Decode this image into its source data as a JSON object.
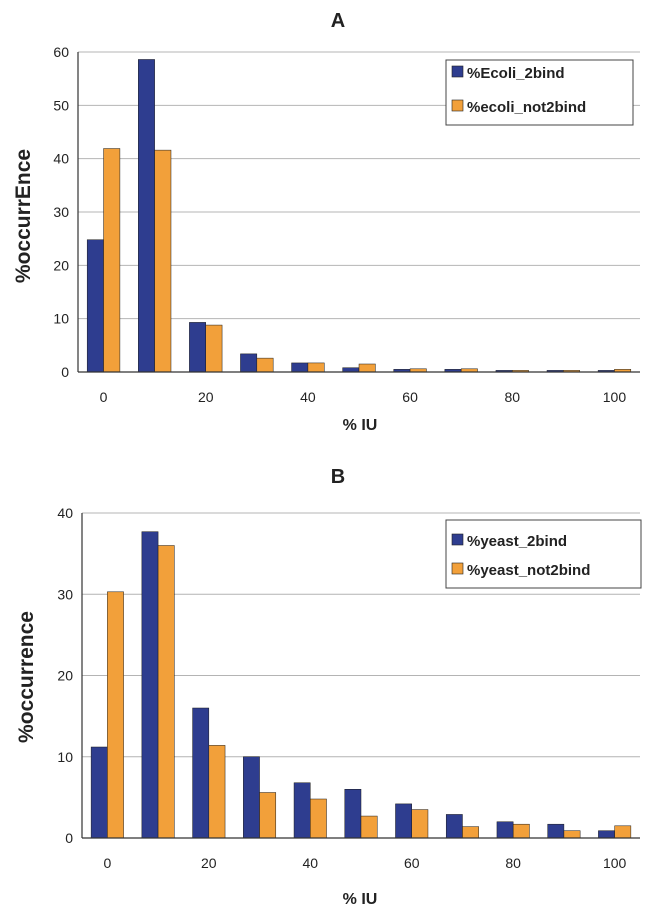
{
  "colors": {
    "series_a": "#2E3D8F",
    "series_b": "#F2A03A",
    "grid": "#b4b4b4",
    "axis": "#333333"
  },
  "chart_data": [
    {
      "type": "bar",
      "title": "A",
      "xlabel": "% IU",
      "ylabel": "%occurrEnce",
      "x": [
        0,
        10,
        20,
        30,
        40,
        50,
        60,
        70,
        80,
        90,
        100
      ],
      "xticks": [
        0,
        20,
        40,
        60,
        80,
        100
      ],
      "ylim": [
        0,
        60
      ],
      "yticks": [
        0,
        10,
        20,
        30,
        40,
        50,
        60
      ],
      "grid": true,
      "legend_position": "top-right",
      "series": [
        {
          "name": "%Ecoli_2bind",
          "values": [
            24.8,
            58.6,
            9.3,
            3.4,
            1.7,
            0.8,
            0.5,
            0.5,
            0.3,
            0.3,
            0.3
          ]
        },
        {
          "name": "%ecoli_not2bind",
          "values": [
            41.9,
            41.6,
            8.8,
            2.6,
            1.7,
            1.5,
            0.6,
            0.6,
            0.3,
            0.3,
            0.5
          ]
        }
      ]
    },
    {
      "type": "bar",
      "title": "B",
      "xlabel": "% IU",
      "ylabel": "%occurrence",
      "x": [
        0,
        10,
        20,
        30,
        40,
        50,
        60,
        70,
        80,
        90,
        100
      ],
      "xticks": [
        0,
        20,
        40,
        60,
        80,
        100
      ],
      "ylim": [
        0,
        40
      ],
      "yticks": [
        0,
        10,
        20,
        30,
        40
      ],
      "grid": true,
      "legend_position": "top-right",
      "series": [
        {
          "name": "%yeast_2bind",
          "values": [
            11.2,
            37.7,
            16.0,
            10.0,
            6.8,
            6.0,
            4.2,
            2.9,
            2.0,
            1.7,
            0.9
          ]
        },
        {
          "name": "%yeast_not2bind",
          "values": [
            30.3,
            36.0,
            11.4,
            5.6,
            4.8,
            2.7,
            3.5,
            1.4,
            1.7,
            0.9,
            1.5
          ]
        }
      ]
    }
  ]
}
